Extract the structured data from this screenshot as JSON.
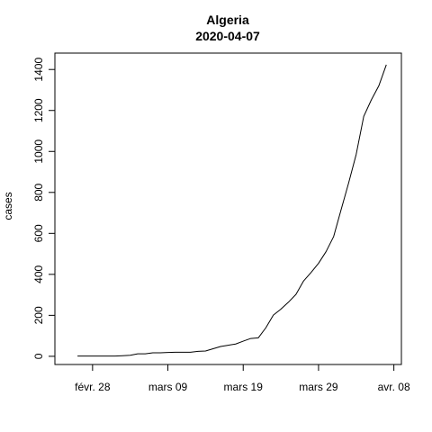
{
  "chart_data": {
    "type": "line",
    "title": "Algeria",
    "subtitle": "2020-04-07",
    "xlabel": "",
    "ylabel": "cases",
    "ylim": [
      -40,
      1480
    ],
    "xlim": [
      "2020-02-23",
      "2020-04-09"
    ],
    "grid": false,
    "x_ticks": [
      {
        "date": "2020-02-28",
        "label": "févr. 28"
      },
      {
        "date": "2020-03-09",
        "label": "mars 09"
      },
      {
        "date": "2020-03-19",
        "label": "mars 19"
      },
      {
        "date": "2020-03-29",
        "label": "mars 29"
      },
      {
        "date": "2020-04-08",
        "label": "avr. 08"
      }
    ],
    "y_ticks": [
      0,
      200,
      400,
      600,
      800,
      1000,
      1200,
      1400
    ],
    "series": [
      {
        "x": [
          "2020-02-26",
          "2020-02-27",
          "2020-02-28",
          "2020-02-29",
          "2020-03-01",
          "2020-03-02",
          "2020-03-03",
          "2020-03-04",
          "2020-03-05",
          "2020-03-06",
          "2020-03-07",
          "2020-03-08",
          "2020-03-09",
          "2020-03-10",
          "2020-03-11",
          "2020-03-12",
          "2020-03-13",
          "2020-03-14",
          "2020-03-15",
          "2020-03-16",
          "2020-03-17",
          "2020-03-18",
          "2020-03-19",
          "2020-03-20",
          "2020-03-21",
          "2020-03-22",
          "2020-03-23",
          "2020-03-24",
          "2020-03-25",
          "2020-03-26",
          "2020-03-27",
          "2020-03-28",
          "2020-03-29",
          "2020-03-30",
          "2020-03-31",
          "2020-04-01",
          "2020-04-02",
          "2020-04-03",
          "2020-04-04",
          "2020-04-05",
          "2020-04-06",
          "2020-04-07"
        ],
        "y": [
          1,
          1,
          1,
          1,
          1,
          1,
          3,
          5,
          12,
          12,
          17,
          17,
          19,
          20,
          20,
          20,
          24,
          26,
          37,
          48,
          54,
          60,
          74,
          87,
          90,
          139,
          201,
          230,
          264,
          302,
          367,
          409,
          454,
          511,
          584,
          716,
          847,
          986,
          1171,
          1251,
          1320,
          1423
        ]
      }
    ]
  }
}
